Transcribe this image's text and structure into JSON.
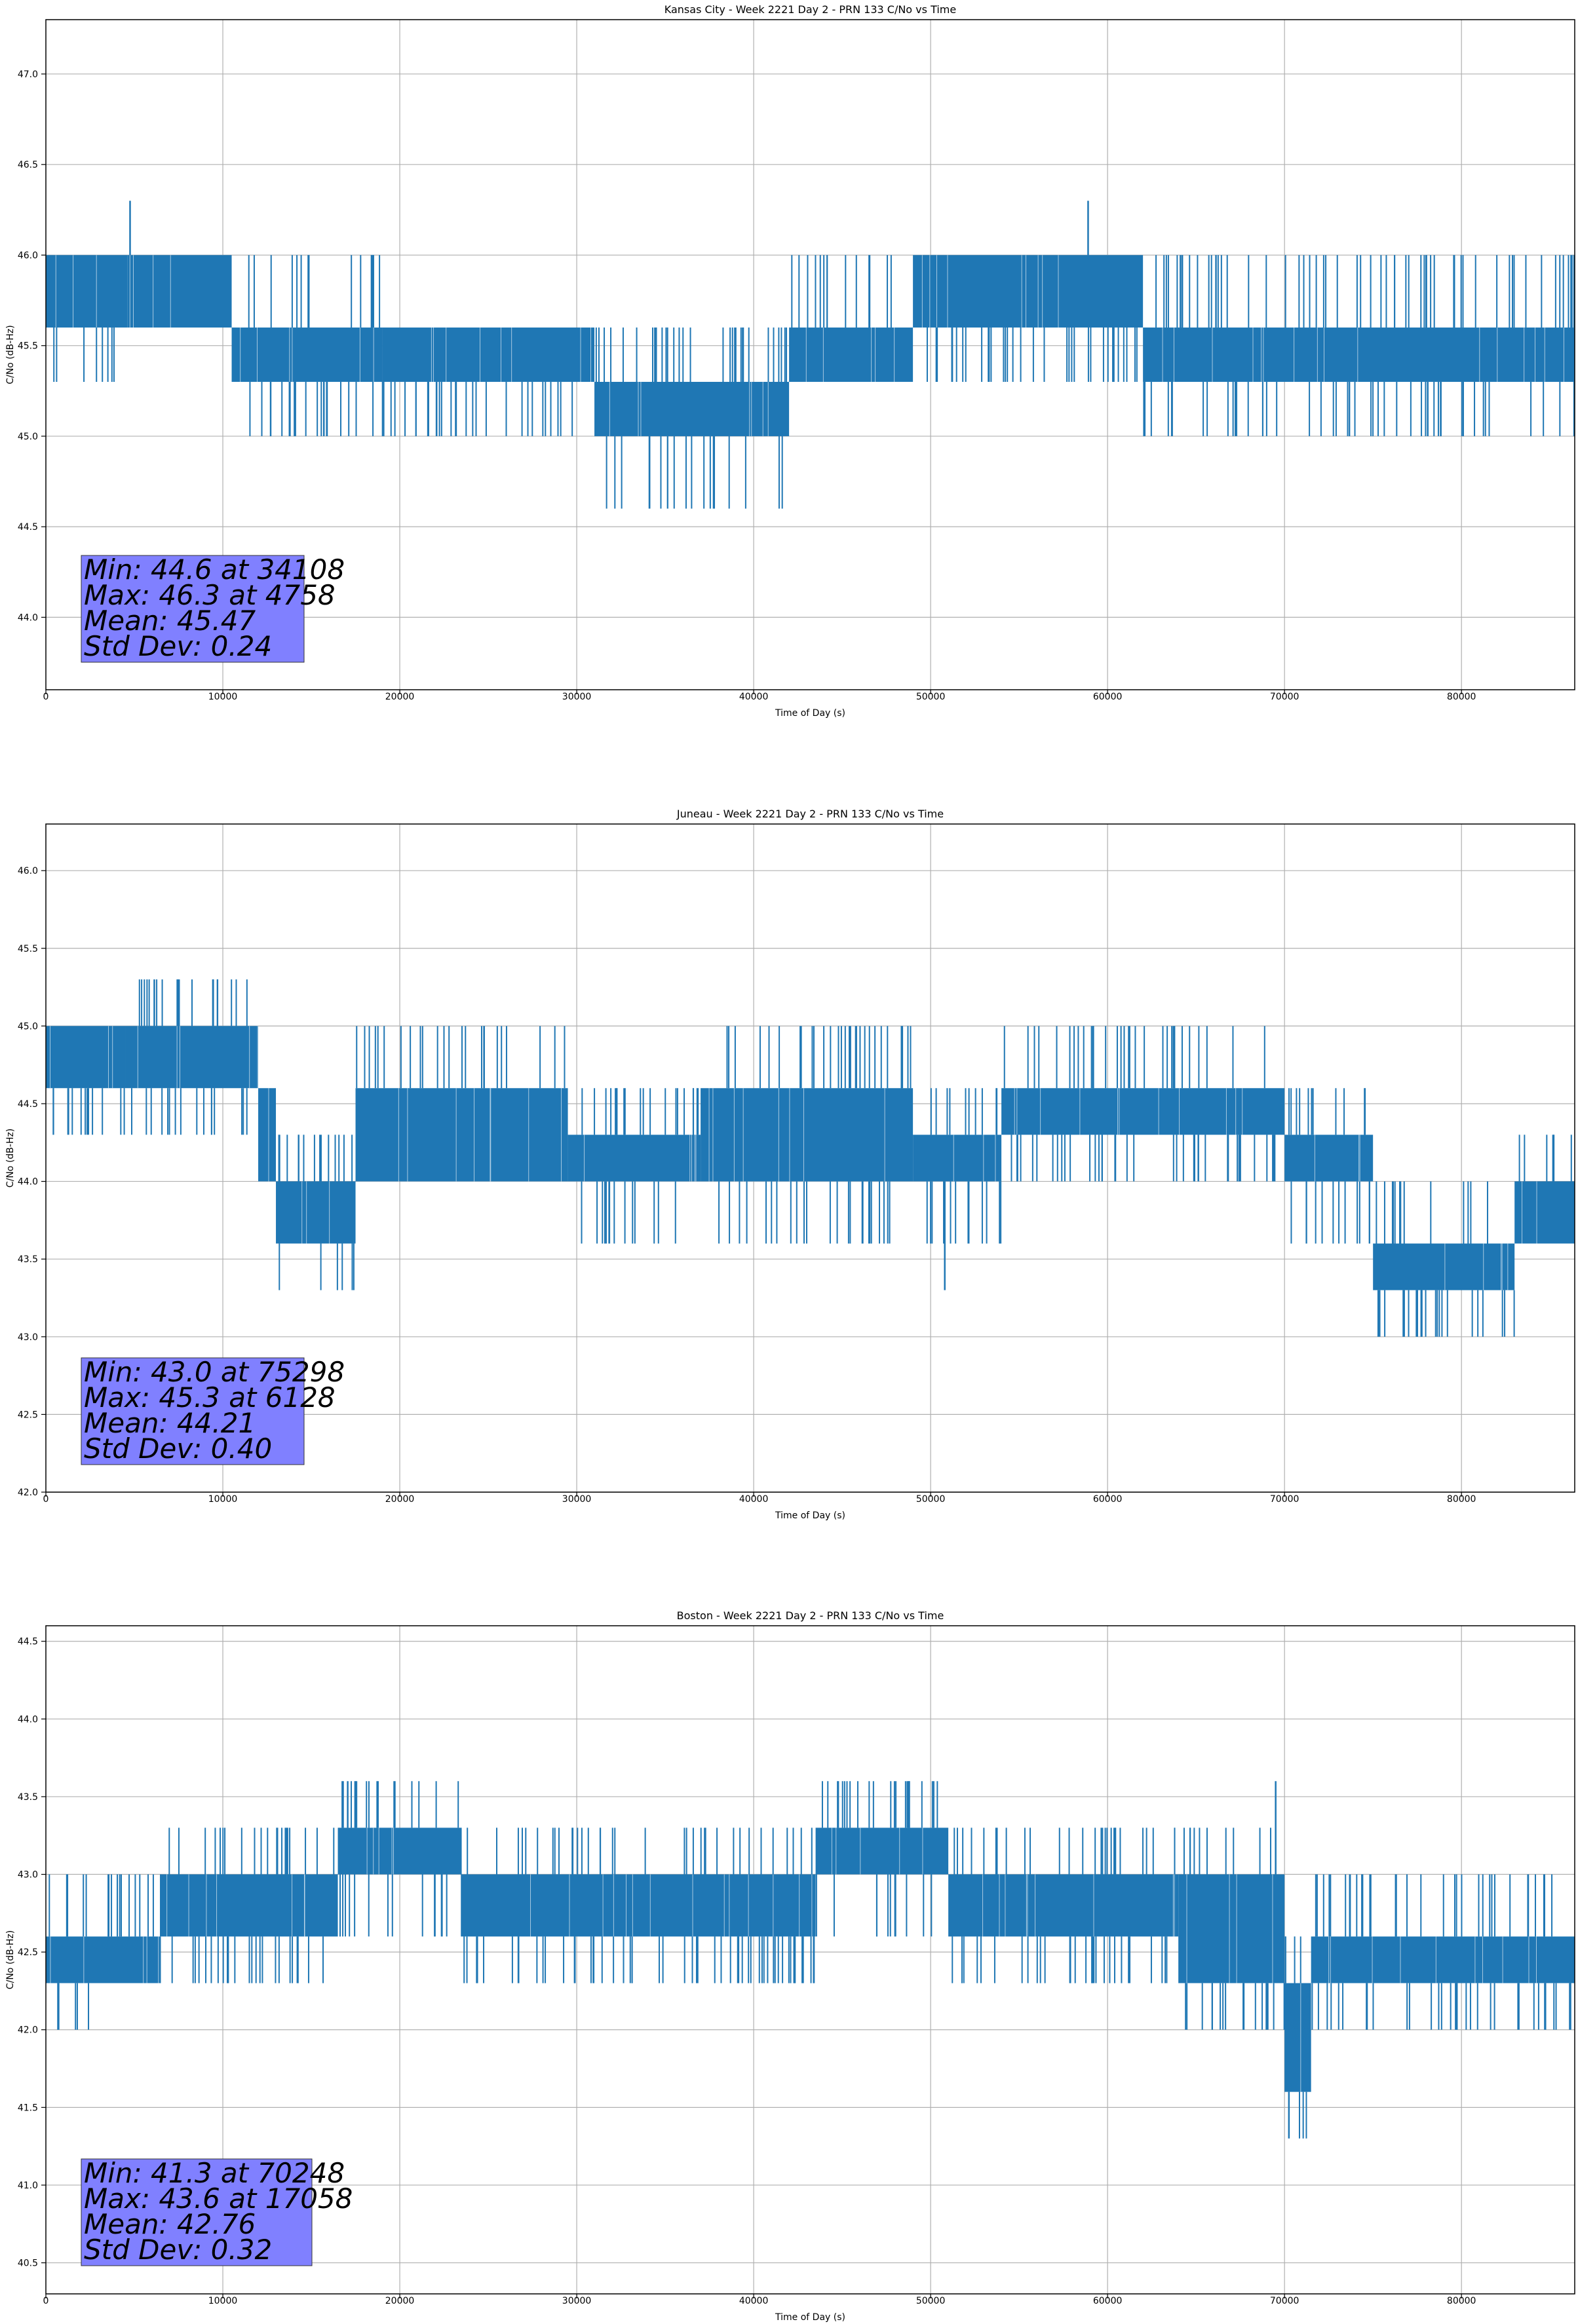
{
  "figure": {
    "line_color": "#1f77b4",
    "stats_box_color": "#8080ff",
    "grid_color": "#b0b0b0"
  },
  "chart_data": [
    {
      "type": "line",
      "title": "Kansas City - Week 2221 Day 2 - PRN 133 C/No vs Time",
      "xlabel": "Time of Day (s)",
      "ylabel": "C/No (dB-Hz)",
      "xlim": [
        0,
        86400
      ],
      "ylim": [
        43.6,
        47.3
      ],
      "xticks": [
        0,
        10000,
        20000,
        30000,
        40000,
        50000,
        60000,
        70000,
        80000
      ],
      "yticks": [
        44.0,
        44.5,
        45.0,
        45.5,
        46.0,
        46.5,
        47.0
      ],
      "grid": true,
      "series": [
        {
          "name": "C/No",
          "color": "#1f77b4",
          "segments": [
            {
              "x0": 0,
              "x1": 4600,
              "base_lo": 45.6,
              "base_hi": 46.0,
              "spike_lo": 45.3,
              "spike_hi": 46.0
            },
            {
              "x0": 4600,
              "x1": 10500,
              "base_lo": 45.6,
              "base_hi": 46.0,
              "spike_lo": 45.6,
              "spike_hi": 46.0
            },
            {
              "x0": 10500,
              "x1": 19000,
              "base_lo": 45.3,
              "base_hi": 45.6,
              "spike_lo": 45.0,
              "spike_hi": 46.0
            },
            {
              "x0": 19000,
              "x1": 31000,
              "base_lo": 45.3,
              "base_hi": 45.6,
              "spike_lo": 45.0,
              "spike_hi": 45.6
            },
            {
              "x0": 31000,
              "x1": 42000,
              "base_lo": 45.0,
              "base_hi": 45.3,
              "spike_lo": 44.6,
              "spike_hi": 45.6
            },
            {
              "x0": 42000,
              "x1": 49000,
              "base_lo": 45.3,
              "base_hi": 45.6,
              "spike_lo": 45.3,
              "spike_hi": 46.0
            },
            {
              "x0": 49000,
              "x1": 62000,
              "base_lo": 45.6,
              "base_hi": 46.0,
              "spike_lo": 45.3,
              "spike_hi": 46.0
            },
            {
              "x0": 62000,
              "x1": 86400,
              "base_lo": 45.3,
              "base_hi": 45.6,
              "spike_lo": 45.0,
              "spike_hi": 46.0
            }
          ],
          "peaks": [
            {
              "x": 4758,
              "y": 46.3
            },
            {
              "x": 58900,
              "y": 46.3
            },
            {
              "x": 34108,
              "y": 44.6
            }
          ]
        }
      ],
      "stats": [
        "Min: 44.6 at 34108",
        "Max: 46.3 at 4758",
        "Mean: 45.47",
        "Std Dev: 0.24"
      ]
    },
    {
      "type": "line",
      "title": "Juneau - Week 2221 Day 2 - PRN 133 C/No vs Time",
      "xlabel": "Time of Day (s)",
      "ylabel": "C/No (dB-Hz)",
      "xlim": [
        0,
        86400
      ],
      "ylim": [
        42.0,
        46.3
      ],
      "xticks": [
        0,
        10000,
        20000,
        30000,
        40000,
        50000,
        60000,
        70000,
        80000
      ],
      "yticks": [
        42.0,
        42.5,
        43.0,
        43.5,
        44.0,
        44.5,
        45.0,
        45.5,
        46.0
      ],
      "grid": true,
      "series": [
        {
          "name": "C/No",
          "color": "#1f77b4",
          "segments": [
            {
              "x0": 0,
              "x1": 4500,
              "base_lo": 44.6,
              "base_hi": 45.0,
              "spike_lo": 44.3,
              "spike_hi": 45.0
            },
            {
              "x0": 4500,
              "x1": 12000,
              "base_lo": 44.6,
              "base_hi": 45.0,
              "spike_lo": 44.3,
              "spike_hi": 45.3
            },
            {
              "x0": 12000,
              "x1": 13000,
              "base_lo": 44.0,
              "base_hi": 44.6,
              "spike_lo": 44.0,
              "spike_hi": 44.6
            },
            {
              "x0": 13000,
              "x1": 17500,
              "base_lo": 43.6,
              "base_hi": 44.0,
              "spike_lo": 43.3,
              "spike_hi": 44.3
            },
            {
              "x0": 17500,
              "x1": 29500,
              "base_lo": 44.0,
              "base_hi": 44.6,
              "spike_lo": 44.0,
              "spike_hi": 45.0
            },
            {
              "x0": 29500,
              "x1": 37000,
              "base_lo": 44.0,
              "base_hi": 44.3,
              "spike_lo": 43.6,
              "spike_hi": 44.6
            },
            {
              "x0": 37000,
              "x1": 49000,
              "base_lo": 44.0,
              "base_hi": 44.6,
              "spike_lo": 43.6,
              "spike_hi": 45.0
            },
            {
              "x0": 49000,
              "x1": 54000,
              "base_lo": 44.0,
              "base_hi": 44.3,
              "spike_lo": 43.6,
              "spike_hi": 44.6
            },
            {
              "x0": 54000,
              "x1": 70000,
              "base_lo": 44.3,
              "base_hi": 44.6,
              "spike_lo": 44.0,
              "spike_hi": 45.0
            },
            {
              "x0": 70000,
              "x1": 75000,
              "base_lo": 44.0,
              "base_hi": 44.3,
              "spike_lo": 43.6,
              "spike_hi": 44.6
            },
            {
              "x0": 75000,
              "x1": 83000,
              "base_lo": 43.3,
              "base_hi": 43.6,
              "spike_lo": 43.0,
              "spike_hi": 44.0
            },
            {
              "x0": 83000,
              "x1": 86400,
              "base_lo": 43.6,
              "base_hi": 44.0,
              "spike_lo": 43.6,
              "spike_hi": 44.3
            }
          ],
          "peaks": [
            {
              "x": 6128,
              "y": 45.3
            },
            {
              "x": 75298,
              "y": 43.0
            },
            {
              "x": 50800,
              "y": 43.3
            }
          ]
        }
      ],
      "stats": [
        "Min: 43.0 at 75298",
        "Max: 45.3 at 6128",
        "Mean: 44.21",
        "Std Dev: 0.40"
      ]
    },
    {
      "type": "line",
      "title": "Boston - Week 2221 Day 2 - PRN 133 C/No vs Time",
      "xlabel": "Time of Day (s)",
      "ylabel": "C/No (dB-Hz)",
      "xlim": [
        0,
        86400
      ],
      "ylim": [
        40.3,
        44.6
      ],
      "xticks": [
        0,
        10000,
        20000,
        30000,
        40000,
        50000,
        60000,
        70000,
        80000
      ],
      "yticks": [
        40.5,
        41.0,
        41.5,
        42.0,
        42.5,
        43.0,
        43.5,
        44.0,
        44.5
      ],
      "grid": true,
      "series": [
        {
          "name": "C/No",
          "color": "#1f77b4",
          "segments": [
            {
              "x0": 0,
              "x1": 2500,
              "base_lo": 42.3,
              "base_hi": 42.6,
              "spike_lo": 42.0,
              "spike_hi": 43.0
            },
            {
              "x0": 2500,
              "x1": 6500,
              "base_lo": 42.3,
              "base_hi": 42.6,
              "spike_lo": 42.3,
              "spike_hi": 43.0
            },
            {
              "x0": 6500,
              "x1": 16500,
              "base_lo": 42.6,
              "base_hi": 43.0,
              "spike_lo": 42.3,
              "spike_hi": 43.3
            },
            {
              "x0": 16500,
              "x1": 23500,
              "base_lo": 43.0,
              "base_hi": 43.3,
              "spike_lo": 42.6,
              "spike_hi": 43.6
            },
            {
              "x0": 23500,
              "x1": 43500,
              "base_lo": 42.6,
              "base_hi": 43.0,
              "spike_lo": 42.3,
              "spike_hi": 43.3
            },
            {
              "x0": 43500,
              "x1": 51000,
              "base_lo": 43.0,
              "base_hi": 43.3,
              "spike_lo": 42.6,
              "spike_hi": 43.6
            },
            {
              "x0": 51000,
              "x1": 64000,
              "base_lo": 42.6,
              "base_hi": 43.0,
              "spike_lo": 42.3,
              "spike_hi": 43.3
            },
            {
              "x0": 64000,
              "x1": 70000,
              "base_lo": 42.3,
              "base_hi": 43.0,
              "spike_lo": 42.0,
              "spike_hi": 43.3
            },
            {
              "x0": 70000,
              "x1": 71500,
              "base_lo": 41.6,
              "base_hi": 42.3,
              "spike_lo": 41.3,
              "spike_hi": 42.6
            },
            {
              "x0": 71500,
              "x1": 86400,
              "base_lo": 42.3,
              "base_hi": 42.6,
              "spike_lo": 42.0,
              "spike_hi": 43.0
            }
          ],
          "peaks": [
            {
              "x": 17058,
              "y": 43.6
            },
            {
              "x": 70248,
              "y": 41.3
            },
            {
              "x": 69500,
              "y": 43.6
            }
          ]
        }
      ],
      "stats": [
        "Min: 41.3 at 70248",
        "Max: 43.6 at 17058",
        "Mean: 42.76",
        "Std Dev: 0.32"
      ]
    }
  ]
}
